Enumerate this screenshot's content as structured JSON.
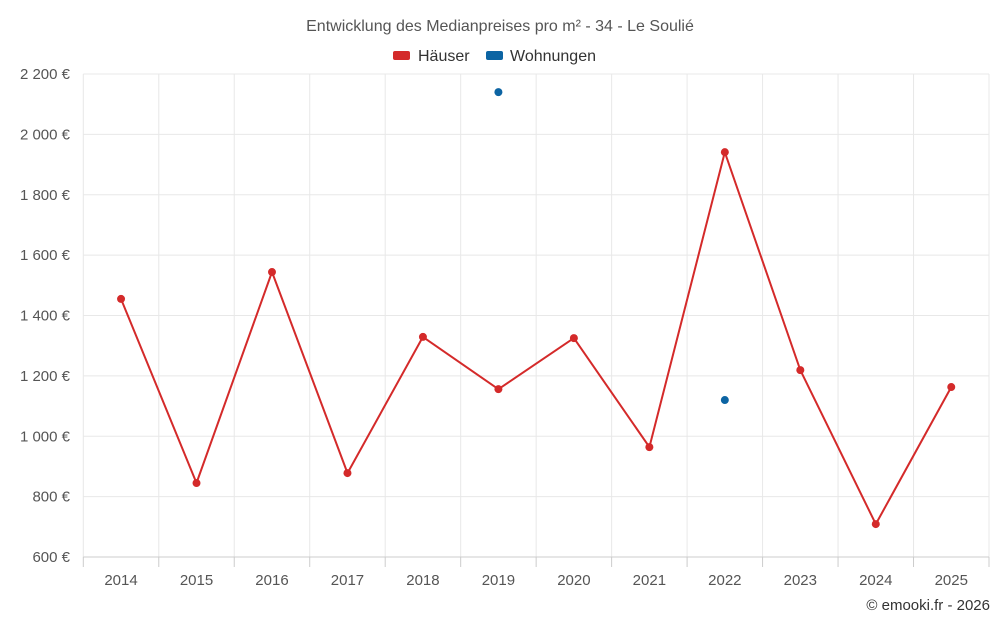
{
  "chart_data": {
    "type": "line",
    "title": "Entwicklung des Medianpreises pro m² - 34 - Le Soulié",
    "categories": [
      "2014",
      "2015",
      "2016",
      "2017",
      "2018",
      "2019",
      "2020",
      "2021",
      "2022",
      "2023",
      "2024",
      "2025"
    ],
    "ylim": [
      600,
      2200
    ],
    "yticks": [
      600,
      800,
      1000,
      1200,
      1400,
      1600,
      1800,
      2000,
      2200
    ],
    "ytick_labels": [
      "600 €",
      "800 €",
      "1 000 €",
      "1 200 €",
      "1 400 €",
      "1 600 €",
      "1 800 €",
      "2 000 €",
      "2 200 €"
    ],
    "grid": true,
    "legend": "top-center",
    "series": [
      {
        "name": "Häuser",
        "color": "#d42a2a",
        "values": [
          1455,
          845,
          1544,
          878,
          1329,
          1156,
          1325,
          964,
          1941,
          1219,
          709,
          1163
        ]
      },
      {
        "name": "Wohnungen",
        "color": "#0c64a3",
        "values": [
          null,
          null,
          null,
          null,
          null,
          2140,
          null,
          null,
          1120,
          null,
          null,
          null
        ]
      }
    ],
    "credit": "© emooki.fr - 2026"
  }
}
